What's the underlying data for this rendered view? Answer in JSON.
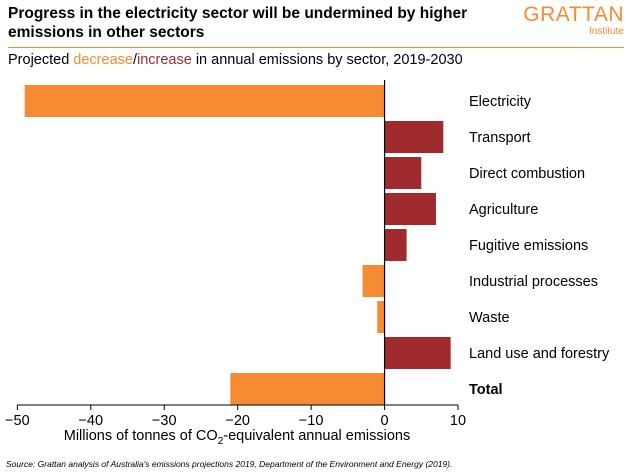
{
  "header": {
    "title": "Progress in the electricity sector will be undermined by higher emissions in other sectors",
    "subtitle_prefix": "Projected ",
    "subtitle_decrease": "decrease",
    "subtitle_sep": "/",
    "subtitle_increase": "increase",
    "subtitle_suffix": " in annual emissions by sector, 2019-2030"
  },
  "logo": {
    "name": "GRATTAN",
    "sub": "Institute"
  },
  "colors": {
    "decrease": "#f68b33",
    "increase": "#a02b2d",
    "accent": "#f68b33"
  },
  "axis": {
    "xlabel_prefix": "Millions of tonnes of CO",
    "xlabel_sub": "2",
    "xlabel_suffix": "-equivalent annual emissions"
  },
  "source": "Source: Grattan analysis of Australia's emissions projections 2019, Department of the Environment and Energy (2019).",
  "chart_data": {
    "type": "bar",
    "orientation": "horizontal",
    "categories": [
      "Electricity",
      "Transport",
      "Direct combustion",
      "Agriculture",
      "Fugitive emissions",
      "Industrial processes",
      "Waste",
      "Land use and forestry",
      "Total"
    ],
    "values": [
      -49,
      8,
      5,
      7,
      3,
      -3,
      -1,
      9,
      -21
    ],
    "bold_categories": [
      "Total"
    ],
    "xlim": [
      -51,
      10
    ],
    "xticks": [
      -50,
      -40,
      -30,
      -20,
      -10,
      0,
      10
    ],
    "xlabel": "Millions of tonnes of CO2-equivalent annual emissions"
  }
}
